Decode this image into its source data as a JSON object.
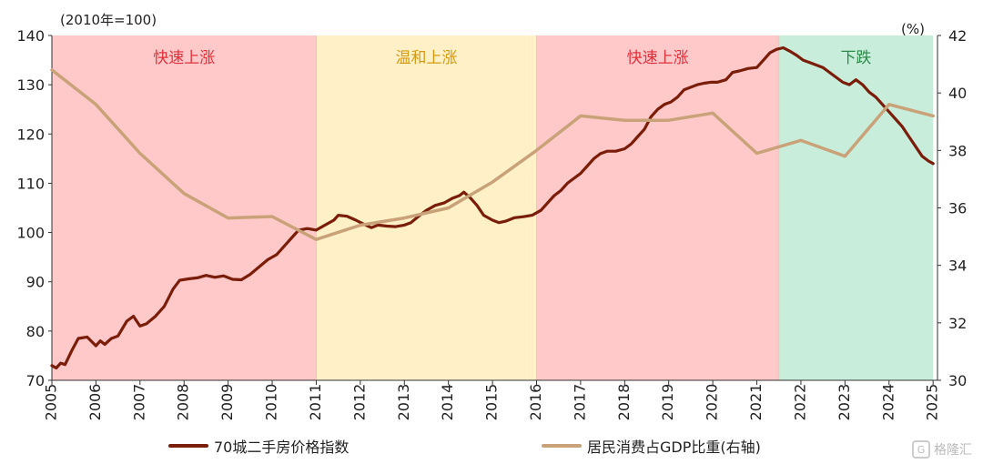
{
  "chart_data": {
    "type": "line",
    "left_axis_unit": "(2010年=100)",
    "right_axis_unit": "(%)",
    "ylim_left": [
      70,
      140
    ],
    "ylim_right": [
      30,
      42
    ],
    "y_ticks_left": [
      "70",
      "80",
      "90",
      "100",
      "110",
      "120",
      "130",
      "140"
    ],
    "y_ticks_right": [
      "30",
      "32",
      "34",
      "36",
      "38",
      "40",
      "42"
    ],
    "x_ticks": [
      "2005",
      "2006",
      "2007",
      "2008",
      "2009",
      "2010",
      "2011",
      "2012",
      "2013",
      "2014",
      "2015",
      "2016",
      "2017",
      "2018",
      "2019",
      "2020",
      "2021",
      "2022",
      "2023",
      "2024",
      "2025"
    ],
    "regions": [
      {
        "label": "快速上涨",
        "start": 2005.0,
        "end": 2011.0,
        "fill": "#ffc9c9",
        "text_color": "#e0303a"
      },
      {
        "label": "温和上涨",
        "start": 2011.0,
        "end": 2016.0,
        "fill": "#fff0c8",
        "text_color": "#d69a12"
      },
      {
        "label": "快速上涨",
        "start": 2016.0,
        "end": 2021.5,
        "fill": "#ffc9c9",
        "text_color": "#e0303a"
      },
      {
        "label": "下跌",
        "start": 2021.5,
        "end": 2025.0,
        "fill": "#c8eedb",
        "text_color": "#2c8a4a"
      }
    ],
    "series": [
      {
        "name": "70城二手房价格指数",
        "axis": "left",
        "color": "#7a1d0a",
        "points": [
          [
            2005.0,
            73
          ],
          [
            2005.1,
            72.5
          ],
          [
            2005.2,
            73.5
          ],
          [
            2005.3,
            73.2
          ],
          [
            2005.45,
            76
          ],
          [
            2005.6,
            78.5
          ],
          [
            2005.8,
            78.8
          ],
          [
            2006.0,
            77
          ],
          [
            2006.1,
            78
          ],
          [
            2006.2,
            77.3
          ],
          [
            2006.35,
            78.5
          ],
          [
            2006.5,
            79
          ],
          [
            2006.7,
            82
          ],
          [
            2006.85,
            83
          ],
          [
            2007.0,
            81
          ],
          [
            2007.15,
            81.5
          ],
          [
            2007.35,
            83
          ],
          [
            2007.55,
            85
          ],
          [
            2007.75,
            88.5
          ],
          [
            2007.9,
            90.3
          ],
          [
            2008.1,
            90.6
          ],
          [
            2008.3,
            90.8
          ],
          [
            2008.5,
            91.3
          ],
          [
            2008.7,
            90.9
          ],
          [
            2008.9,
            91.2
          ],
          [
            2009.1,
            90.5
          ],
          [
            2009.3,
            90.4
          ],
          [
            2009.5,
            91.5
          ],
          [
            2009.7,
            93
          ],
          [
            2009.9,
            94.5
          ],
          [
            2010.1,
            95.5
          ],
          [
            2010.3,
            97.5
          ],
          [
            2010.45,
            99
          ],
          [
            2010.6,
            100.5
          ],
          [
            2010.8,
            100.8
          ],
          [
            2011.0,
            100.5
          ],
          [
            2011.2,
            101.5
          ],
          [
            2011.4,
            102.5
          ],
          [
            2011.5,
            103.5
          ],
          [
            2011.7,
            103.3
          ],
          [
            2011.9,
            102.5
          ],
          [
            2012.1,
            101.6
          ],
          [
            2012.25,
            101
          ],
          [
            2012.4,
            101.5
          ],
          [
            2012.6,
            101.3
          ],
          [
            2012.8,
            101.2
          ],
          [
            2013.0,
            101.5
          ],
          [
            2013.15,
            102
          ],
          [
            2013.35,
            103.5
          ],
          [
            2013.5,
            104.5
          ],
          [
            2013.7,
            105.5
          ],
          [
            2013.9,
            106
          ],
          [
            2014.1,
            107
          ],
          [
            2014.25,
            107.5
          ],
          [
            2014.35,
            108.2
          ],
          [
            2014.5,
            107
          ],
          [
            2014.65,
            105.5
          ],
          [
            2014.8,
            103.5
          ],
          [
            2015.0,
            102.5
          ],
          [
            2015.15,
            102
          ],
          [
            2015.3,
            102.3
          ],
          [
            2015.5,
            103
          ],
          [
            2015.7,
            103.2
          ],
          [
            2015.9,
            103.5
          ],
          [
            2016.1,
            104.5
          ],
          [
            2016.25,
            106
          ],
          [
            2016.4,
            107.5
          ],
          [
            2016.55,
            108.5
          ],
          [
            2016.7,
            110
          ],
          [
            2016.85,
            111
          ],
          [
            2017.0,
            112
          ],
          [
            2017.15,
            113.5
          ],
          [
            2017.3,
            115
          ],
          [
            2017.45,
            116
          ],
          [
            2017.6,
            116.5
          ],
          [
            2017.8,
            116.5
          ],
          [
            2018.0,
            117
          ],
          [
            2018.15,
            118
          ],
          [
            2018.3,
            119.5
          ],
          [
            2018.45,
            121
          ],
          [
            2018.6,
            123.5
          ],
          [
            2018.75,
            125
          ],
          [
            2018.9,
            126
          ],
          [
            2019.05,
            126.5
          ],
          [
            2019.2,
            127.5
          ],
          [
            2019.35,
            129
          ],
          [
            2019.5,
            129.5
          ],
          [
            2019.65,
            130
          ],
          [
            2019.8,
            130.3
          ],
          [
            2019.95,
            130.5
          ],
          [
            2020.1,
            130.5
          ],
          [
            2020.3,
            131
          ],
          [
            2020.45,
            132.5
          ],
          [
            2020.6,
            132.8
          ],
          [
            2020.8,
            133.3
          ],
          [
            2021.0,
            133.5
          ],
          [
            2021.15,
            135
          ],
          [
            2021.3,
            136.5
          ],
          [
            2021.45,
            137.2
          ],
          [
            2021.6,
            137.5
          ],
          [
            2021.75,
            136.8
          ],
          [
            2021.9,
            136
          ],
          [
            2022.05,
            135
          ],
          [
            2022.2,
            134.5
          ],
          [
            2022.35,
            134
          ],
          [
            2022.5,
            133.5
          ],
          [
            2022.65,
            132.5
          ],
          [
            2022.8,
            131.5
          ],
          [
            2022.95,
            130.5
          ],
          [
            2023.1,
            130
          ],
          [
            2023.25,
            131
          ],
          [
            2023.4,
            130
          ],
          [
            2023.55,
            128.5
          ],
          [
            2023.7,
            127.5
          ],
          [
            2023.85,
            126
          ],
          [
            2024.0,
            124.5
          ],
          [
            2024.15,
            123
          ],
          [
            2024.3,
            121.5
          ],
          [
            2024.45,
            119.5
          ],
          [
            2024.6,
            117.5
          ],
          [
            2024.75,
            115.5
          ],
          [
            2024.9,
            114.5
          ],
          [
            2025.0,
            114
          ]
        ]
      },
      {
        "name": "居民消费占GDP比重(右轴)",
        "axis": "right",
        "color": "#c9a27a",
        "points": [
          [
            2005.0,
            40.8
          ],
          [
            2006.0,
            39.6
          ],
          [
            2007.0,
            37.9
          ],
          [
            2008.0,
            36.5
          ],
          [
            2009.0,
            35.65
          ],
          [
            2010.0,
            35.7
          ],
          [
            2011.0,
            34.9
          ],
          [
            2012.0,
            35.4
          ],
          [
            2013.0,
            35.65
          ],
          [
            2014.0,
            36.0
          ],
          [
            2015.0,
            36.9
          ],
          [
            2016.0,
            38.0
          ],
          [
            2017.0,
            39.2
          ],
          [
            2018.0,
            39.05
          ],
          [
            2019.0,
            39.05
          ],
          [
            2020.0,
            39.3
          ],
          [
            2021.0,
            37.9
          ],
          [
            2022.0,
            38.35
          ],
          [
            2023.0,
            37.8
          ],
          [
            2024.0,
            39.6
          ],
          [
            2025.0,
            39.2
          ]
        ]
      }
    ]
  },
  "legend": {
    "item1": "70城二手房价格指数",
    "item2": "居民消费占GDP比重(右轴)"
  },
  "watermark": {
    "text": "格隆汇",
    "logo": "G"
  }
}
